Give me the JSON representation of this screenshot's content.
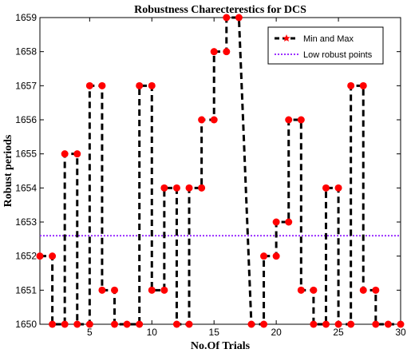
{
  "chart_data": {
    "type": "line",
    "title": "Robustness Charecterestics for DCS",
    "xlabel": "No.Of Trials",
    "ylabel": "Robust periods",
    "xlim": [
      1,
      30
    ],
    "ylim": [
      1650,
      1659
    ],
    "xticks": [
      5,
      10,
      15,
      20,
      25,
      30
    ],
    "yticks": [
      1650,
      1651,
      1652,
      1653,
      1654,
      1655,
      1656,
      1657,
      1658,
      1659
    ],
    "grid": false,
    "legend_position": "top-right",
    "series": [
      {
        "name": "Min and Max",
        "style": "dashed-step-with-star-markers",
        "color": "#000000",
        "marker_color": "#ff0000",
        "x": [
          1,
          2,
          2,
          3,
          3,
          4,
          4,
          5,
          5,
          6,
          6,
          7,
          7,
          8,
          9,
          9,
          10,
          10,
          11,
          11,
          12,
          12,
          13,
          13,
          14,
          14,
          15,
          15,
          16,
          16,
          17,
          18,
          19,
          19,
          20,
          20,
          21,
          21,
          22,
          22,
          23,
          23,
          24,
          24,
          25,
          25,
          26,
          26,
          27,
          27,
          28,
          28,
          29,
          30
        ],
        "y": [
          1652,
          1652,
          1650,
          1650,
          1655,
          1655,
          1650,
          1650,
          1657,
          1657,
          1651,
          1651,
          1650,
          1650,
          1650,
          1657,
          1657,
          1651,
          1651,
          1654,
          1654,
          1650,
          1650,
          1654,
          1654,
          1656,
          1656,
          1658,
          1658,
          1659,
          1659,
          1650,
          1650,
          1652,
          1652,
          1653,
          1653,
          1656,
          1656,
          1651,
          1651,
          1650,
          1650,
          1654,
          1654,
          1650,
          1650,
          1657,
          1657,
          1651,
          1651,
          1650,
          1650,
          1650
        ]
      },
      {
        "name": "Low robust points",
        "style": "dotted-horizontal",
        "color": "#9b30ff",
        "y_constant": 1652.6
      }
    ]
  }
}
